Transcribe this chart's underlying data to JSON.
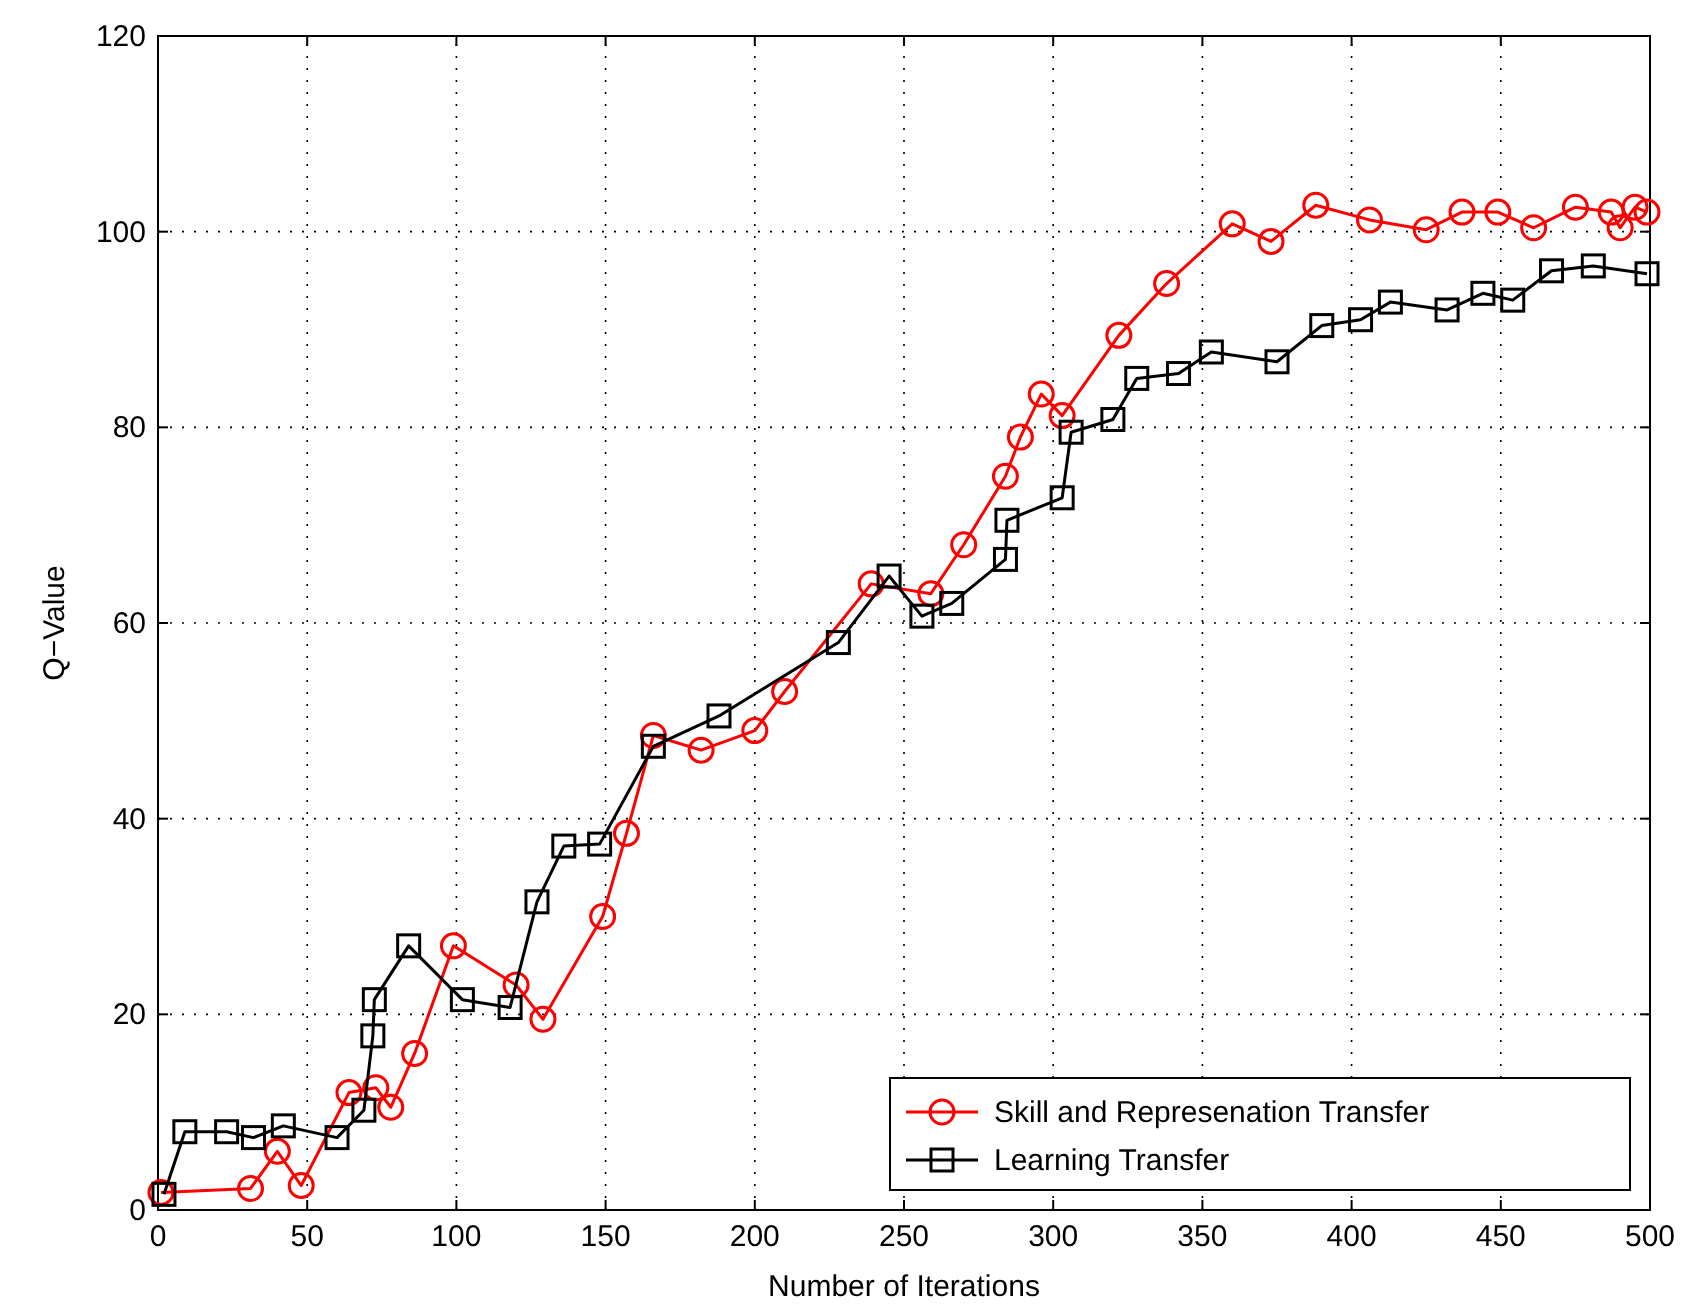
{
  "chart_data": {
    "type": "line",
    "xlabel": "Number of Iterations",
    "ylabel": "Q−Value",
    "xlim": [
      0,
      500
    ],
    "xticks": [
      0,
      50,
      100,
      150,
      200,
      250,
      300,
      350,
      400,
      450,
      500
    ],
    "ylim": [
      0,
      120
    ],
    "yticks": [
      0,
      20,
      40,
      60,
      80,
      100,
      120
    ],
    "grid": true,
    "legend": "bottom right",
    "line_style": "solid",
    "series": [
      {
        "name": "Skill and Represenation Transfer",
        "color": "#ff0000",
        "marker": "circle",
        "x": [
          1,
          31,
          40,
          48,
          64,
          73,
          78,
          86,
          99,
          120,
          129,
          149,
          157,
          166,
          182,
          200,
          210,
          239,
          259,
          270,
          284,
          289,
          296,
          303,
          322,
          338,
          360,
          373,
          388,
          406,
          425,
          437,
          449,
          461,
          475,
          487,
          490,
          495,
          499
        ],
        "values": [
          1.8,
          2.2,
          6,
          2.5,
          12,
          12.5,
          10.5,
          16,
          27,
          23,
          19.5,
          30,
          38.5,
          48.5,
          47,
          49,
          53,
          64,
          63,
          68,
          75,
          79,
          83.4,
          81.2,
          89.4,
          94.7,
          100.8,
          99,
          102.7,
          101.2,
          100.2,
          102,
          102,
          100.4,
          102.5,
          102,
          100.4,
          102.5,
          102
        ]
      },
      {
        "name": "Learning Transfer",
        "color": "#000000",
        "marker": "square",
        "x": [
          2,
          9,
          23,
          32,
          42,
          60,
          69,
          72,
          72.5,
          84,
          102,
          118,
          127,
          136,
          148,
          166,
          188,
          228,
          245,
          256,
          266,
          284,
          284.5,
          303,
          306,
          320,
          328,
          342,
          353,
          375,
          390,
          403,
          413,
          432,
          444,
          454,
          467,
          481,
          499
        ],
        "values": [
          1.6,
          8,
          8,
          7.4,
          8.6,
          7.4,
          10.2,
          17.8,
          21.5,
          27,
          21.5,
          20.7,
          31.5,
          37.2,
          37.4,
          47.4,
          50.5,
          58,
          64.8,
          60.7,
          62,
          66.5,
          70.5,
          72.8,
          79.5,
          80.8,
          85,
          85.5,
          87.7,
          86.7,
          90.4,
          91,
          92.8,
          92,
          93.7,
          93,
          96,
          96.5,
          95.7
        ]
      }
    ]
  }
}
